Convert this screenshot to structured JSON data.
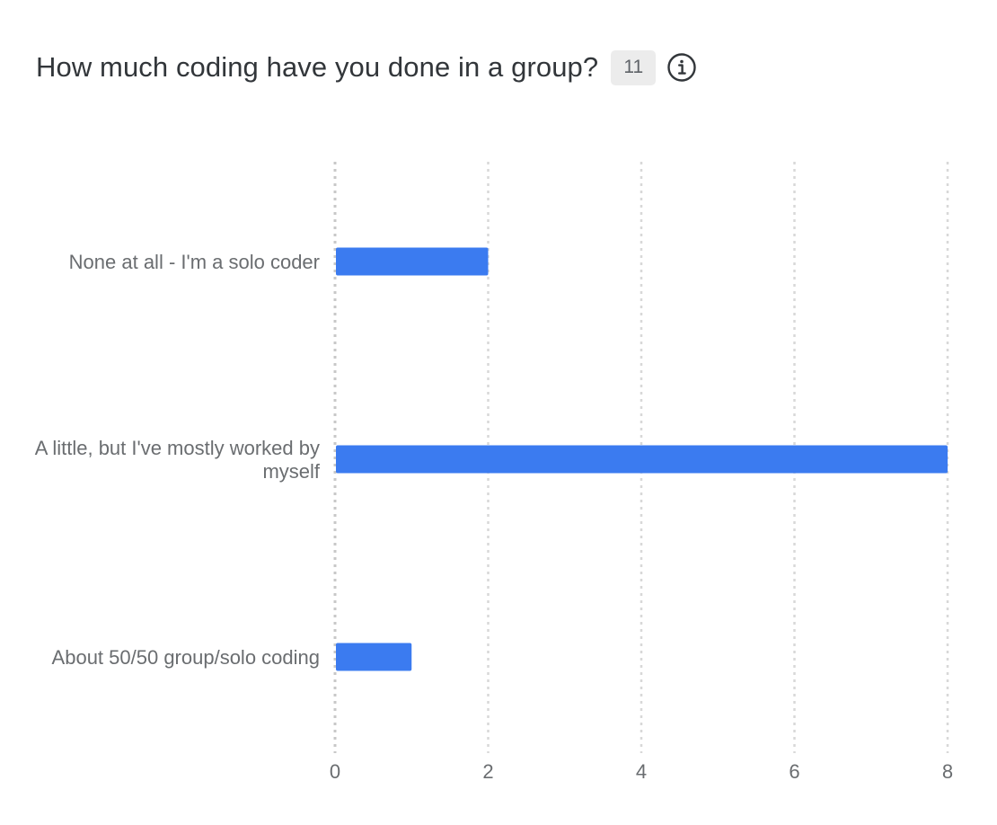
{
  "header": {
    "title": "How much coding have you done in a group?",
    "response_count": "11",
    "info_icon": "info-circle-icon"
  },
  "chart_data": {
    "type": "bar",
    "orientation": "horizontal",
    "categories": [
      [
        "None at all - I'm a solo coder"
      ],
      [
        "A little, but I've mostly worked by",
        "myself"
      ],
      [
        "About 50/50 group/solo coding"
      ]
    ],
    "values": [
      2,
      8,
      1
    ],
    "xlim": [
      0,
      8
    ],
    "xticks": [
      0,
      2,
      4,
      6,
      8
    ],
    "grid": true,
    "bar_color": "#3b7bf0",
    "grid_color": "#d8d8d8",
    "axis_color": "#c8c8c8"
  }
}
